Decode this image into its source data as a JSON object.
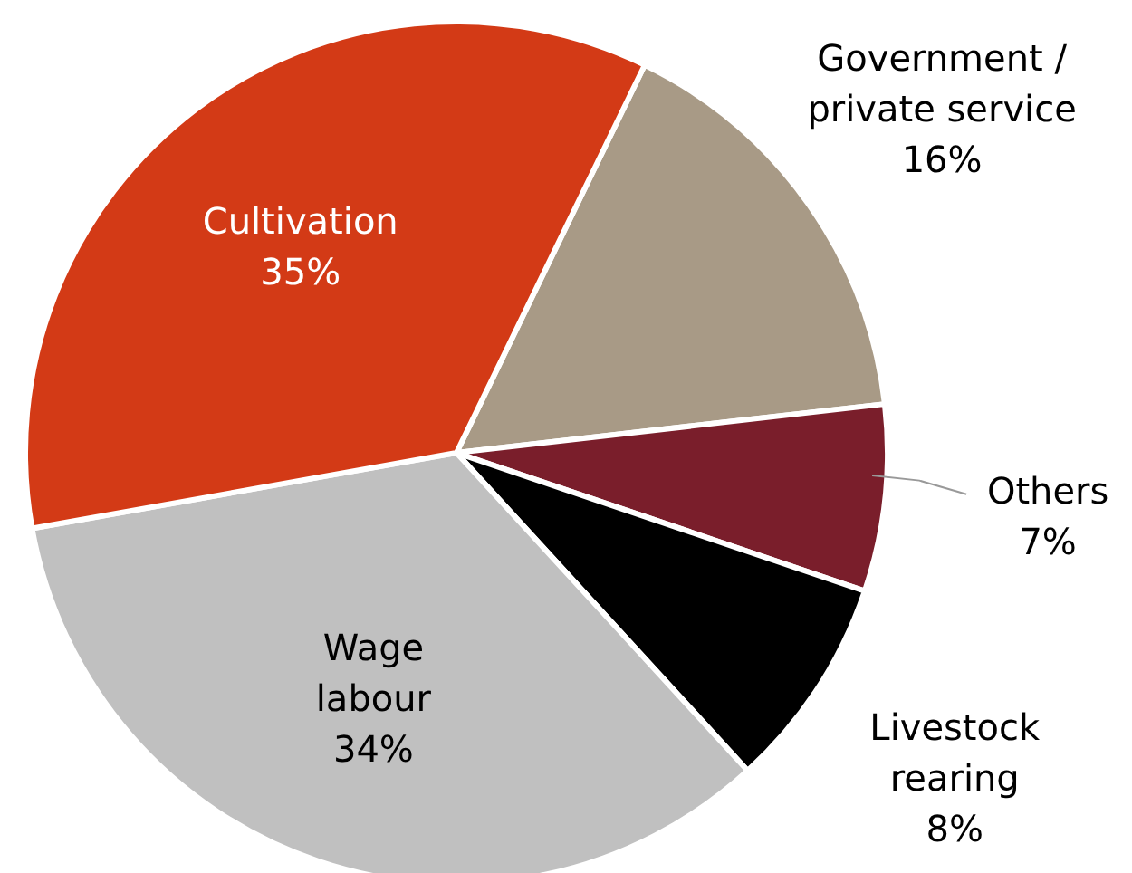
{
  "chart_data": {
    "type": "pie",
    "categories": [
      "Government / private service",
      "Others",
      "Livestock rearing",
      "Wage labour",
      "Cultivation"
    ],
    "values": [
      16,
      7,
      8,
      34,
      35
    ],
    "value_labels": [
      "16%",
      "7%",
      "8%",
      "34%",
      "35%"
    ],
    "colors": [
      "#a89a86",
      "#7a1e2b",
      "#000000",
      "#c0c0c0",
      "#d33a16"
    ]
  }
}
